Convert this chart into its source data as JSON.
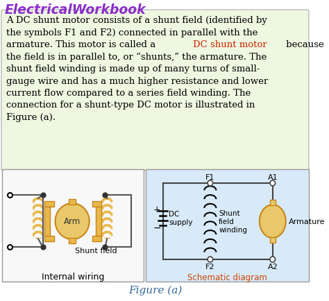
{
  "title": "ElectricalWorkbook",
  "title_color": "#8B2FC9",
  "bg_color": "#ffffff",
  "text_box_bg": "#eef7e0",
  "text_box_border": "#bbbbbb",
  "highlight_text": "DC shunt motor",
  "highlight_color": "#cc2200",
  "figure_caption": "Figure (a)",
  "figure_caption_color": "#336699",
  "internal_wiring_label": "Internal wiring",
  "schematic_label": "Schematic diagram",
  "arm_label": "Arm",
  "shunt_field_label": "Shunt field",
  "dc_supply_label": "DC\nsupply",
  "shunt_field_winding_label": "Shunt\nfield\nwinding",
  "armature_label": "Armature",
  "f1_label": "F1",
  "f2_label": "F2",
  "a1_label": "A1",
  "a2_label": "A2",
  "plus_label": "+",
  "minus_label": "−",
  "schematic_bg": "#d8eaf8",
  "internal_bg": "#f8f8f8",
  "coil_color": "#e8b84b",
  "coil_edge": "#c8861a",
  "armature_color": "#e8c86a",
  "circuit_color": "#333333",
  "body_lines": [
    "A DC shunt motor consists of a shunt field (identified by",
    "the symbols F1 and F2) connected in parallel with the",
    "armature. This motor is called a [RED]DC shunt motor[/RED] because",
    "the field is in parallel to, or “shunts,” the armature. The",
    "shunt field winding is made up of many turns of small-",
    "gauge wire and has a much higher resistance and lower",
    "current flow compared to a series field winding. The",
    "connection for a shunt-type DC motor is illustrated in",
    "Figure (a)."
  ],
  "text_fontsize": 9.5,
  "title_fontsize": 13.5
}
